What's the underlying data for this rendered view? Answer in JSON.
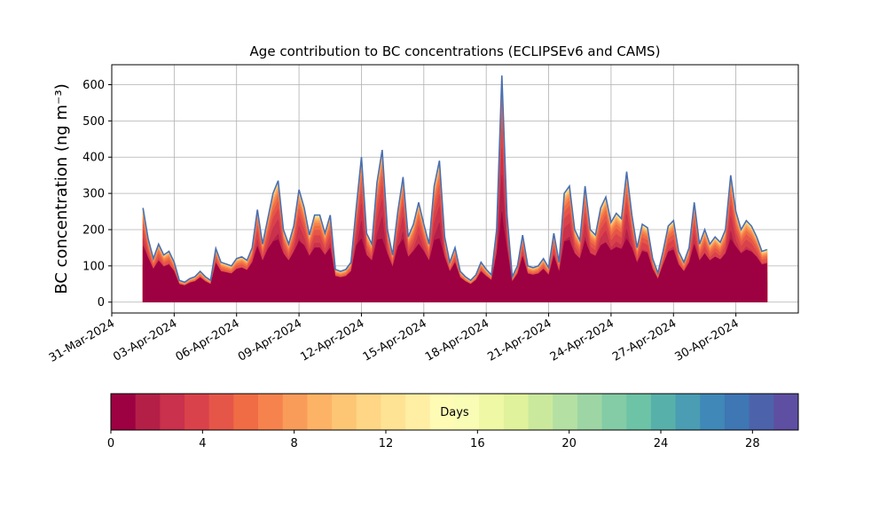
{
  "chart_data": {
    "type": "area",
    "title": "Age contribution to BC concentrations (ECLIPSEv6 and CAMS)",
    "xlabel": "",
    "ylabel": "BC concentration (ng m⁻³)",
    "x_start": "2024-03-31",
    "x_end": "2024-05-03",
    "x_ticks": [
      "31-Mar-2024",
      "03-Apr-2024",
      "06-Apr-2024",
      "09-Apr-2024",
      "12-Apr-2024",
      "15-Apr-2024",
      "18-Apr-2024",
      "21-Apr-2024",
      "24-Apr-2024",
      "27-Apr-2024",
      "30-Apr-2024"
    ],
    "ylim": [
      -30,
      655
    ],
    "y_ticks": [
      0,
      100,
      200,
      300,
      400,
      500,
      600
    ],
    "grid": true,
    "stacking": "cumulative by age",
    "total_series": {
      "name": "",
      "points": [
        [
          "2024-04-01T12:00",
          260
        ],
        [
          "2024-04-01T18:00",
          175
        ],
        [
          "2024-04-02T00:00",
          120
        ],
        [
          "2024-04-02T06:00",
          160
        ],
        [
          "2024-04-02T12:00",
          130
        ],
        [
          "2024-04-02T18:00",
          140
        ],
        [
          "2024-04-03T00:00",
          110
        ],
        [
          "2024-04-03T06:00",
          60
        ],
        [
          "2024-04-03T12:00",
          55
        ],
        [
          "2024-04-03T18:00",
          65
        ],
        [
          "2024-04-04T00:00",
          70
        ],
        [
          "2024-04-04T06:00",
          85
        ],
        [
          "2024-04-04T12:00",
          70
        ],
        [
          "2024-04-04T18:00",
          60
        ],
        [
          "2024-04-05T00:00",
          148
        ],
        [
          "2024-04-05T06:00",
          110
        ],
        [
          "2024-04-05T12:00",
          105
        ],
        [
          "2024-04-05T18:00",
          100
        ],
        [
          "2024-04-06T00:00",
          120
        ],
        [
          "2024-04-06T06:00",
          125
        ],
        [
          "2024-04-06T12:00",
          115
        ],
        [
          "2024-04-06T18:00",
          150
        ],
        [
          "2024-04-07T00:00",
          255
        ],
        [
          "2024-04-07T06:00",
          160
        ],
        [
          "2024-04-07T12:00",
          230
        ],
        [
          "2024-04-07T18:00",
          300
        ],
        [
          "2024-04-08T00:00",
          335
        ],
        [
          "2024-04-08T06:00",
          200
        ],
        [
          "2024-04-08T12:00",
          160
        ],
        [
          "2024-04-08T18:00",
          210
        ],
        [
          "2024-04-09T00:00",
          310
        ],
        [
          "2024-04-09T06:00",
          260
        ],
        [
          "2024-04-09T12:00",
          185
        ],
        [
          "2024-04-09T18:00",
          240
        ],
        [
          "2024-04-10T00:00",
          240
        ],
        [
          "2024-04-10T06:00",
          190
        ],
        [
          "2024-04-10T12:00",
          240
        ],
        [
          "2024-04-10T18:00",
          90
        ],
        [
          "2024-04-11T00:00",
          85
        ],
        [
          "2024-04-11T06:00",
          90
        ],
        [
          "2024-04-11T12:00",
          110
        ],
        [
          "2024-04-11T18:00",
          260
        ],
        [
          "2024-04-12T00:00",
          400
        ],
        [
          "2024-04-12T06:00",
          190
        ],
        [
          "2024-04-12T12:00",
          160
        ],
        [
          "2024-04-12T18:00",
          330
        ],
        [
          "2024-04-13T00:00",
          420
        ],
        [
          "2024-04-13T06:00",
          200
        ],
        [
          "2024-04-13T12:00",
          130
        ],
        [
          "2024-04-13T18:00",
          250
        ],
        [
          "2024-04-14T00:00",
          345
        ],
        [
          "2024-04-14T06:00",
          180
        ],
        [
          "2024-04-14T12:00",
          215
        ],
        [
          "2024-04-14T18:00",
          275
        ],
        [
          "2024-04-15T00:00",
          215
        ],
        [
          "2024-04-15T06:00",
          160
        ],
        [
          "2024-04-15T12:00",
          320
        ],
        [
          "2024-04-15T18:00",
          390
        ],
        [
          "2024-04-16T00:00",
          180
        ],
        [
          "2024-04-16T06:00",
          110
        ],
        [
          "2024-04-16T12:00",
          150
        ],
        [
          "2024-04-16T18:00",
          85
        ],
        [
          "2024-04-17T00:00",
          70
        ],
        [
          "2024-04-17T06:00",
          60
        ],
        [
          "2024-04-17T12:00",
          75
        ],
        [
          "2024-04-17T18:00",
          110
        ],
        [
          "2024-04-18T00:00",
          90
        ],
        [
          "2024-04-18T06:00",
          75
        ],
        [
          "2024-04-18T12:00",
          200
        ],
        [
          "2024-04-18T18:00",
          625
        ],
        [
          "2024-04-19T00:00",
          240
        ],
        [
          "2024-04-19T06:00",
          70
        ],
        [
          "2024-04-19T12:00",
          100
        ],
        [
          "2024-04-19T18:00",
          185
        ],
        [
          "2024-04-20T00:00",
          100
        ],
        [
          "2024-04-20T06:00",
          95
        ],
        [
          "2024-04-20T12:00",
          100
        ],
        [
          "2024-04-20T18:00",
          120
        ],
        [
          "2024-04-21T00:00",
          95
        ],
        [
          "2024-04-21T06:00",
          190
        ],
        [
          "2024-04-21T12:00",
          110
        ],
        [
          "2024-04-21T18:00",
          300
        ],
        [
          "2024-04-22T00:00",
          320
        ],
        [
          "2024-04-22T06:00",
          200
        ],
        [
          "2024-04-22T12:00",
          170
        ],
        [
          "2024-04-22T18:00",
          320
        ],
        [
          "2024-04-23T00:00",
          200
        ],
        [
          "2024-04-23T06:00",
          185
        ],
        [
          "2024-04-23T12:00",
          260
        ],
        [
          "2024-04-23T18:00",
          290
        ],
        [
          "2024-04-24T00:00",
          220
        ],
        [
          "2024-04-24T06:00",
          245
        ],
        [
          "2024-04-24T12:00",
          230
        ],
        [
          "2024-04-24T18:00",
          360
        ],
        [
          "2024-04-25T00:00",
          240
        ],
        [
          "2024-04-25T06:00",
          150
        ],
        [
          "2024-04-25T12:00",
          215
        ],
        [
          "2024-04-25T18:00",
          205
        ],
        [
          "2024-04-26T00:00",
          120
        ],
        [
          "2024-04-26T06:00",
          80
        ],
        [
          "2024-04-26T12:00",
          140
        ],
        [
          "2024-04-26T18:00",
          210
        ],
        [
          "2024-04-27T00:00",
          225
        ],
        [
          "2024-04-27T06:00",
          140
        ],
        [
          "2024-04-27T12:00",
          110
        ],
        [
          "2024-04-27T18:00",
          150
        ],
        [
          "2024-04-28T00:00",
          275
        ],
        [
          "2024-04-28T06:00",
          160
        ],
        [
          "2024-04-28T12:00",
          200
        ],
        [
          "2024-04-28T18:00",
          160
        ],
        [
          "2024-04-29T00:00",
          180
        ],
        [
          "2024-04-29T06:00",
          165
        ],
        [
          "2024-04-29T12:00",
          200
        ],
        [
          "2024-04-29T18:00",
          350
        ],
        [
          "2024-04-30T00:00",
          250
        ],
        [
          "2024-04-30T06:00",
          200
        ],
        [
          "2024-04-30T12:00",
          225
        ],
        [
          "2024-04-30T18:00",
          210
        ],
        [
          "2024-05-01T00:00",
          180
        ],
        [
          "2024-05-01T06:00",
          140
        ],
        [
          "2024-05-01T12:00",
          145
        ]
      ]
    },
    "colorbar": {
      "label": "Days",
      "vmin": 0,
      "vmax": 30,
      "ticks": [
        0,
        4,
        8,
        12,
        16,
        20,
        24,
        28
      ],
      "colors": [
        "#9e0142",
        "#b41f48",
        "#c9314c",
        "#da424b",
        "#e55649",
        "#f06c45",
        "#f6834d",
        "#f99c5a",
        "#fdb365",
        "#fdc675",
        "#fed685",
        "#fee394",
        "#ffefa4",
        "#fefbb5",
        "#f8fcb4",
        "#eef8a5",
        "#e0f29b",
        "#cbe99d",
        "#b4e0a3",
        "#9dd6a4",
        "#83cca5",
        "#6cc3a5",
        "#58b0ab",
        "#4a9db2",
        "#3f88b8",
        "#3f76b4",
        "#4c63ab",
        "#5e4fa2"
      ]
    }
  }
}
